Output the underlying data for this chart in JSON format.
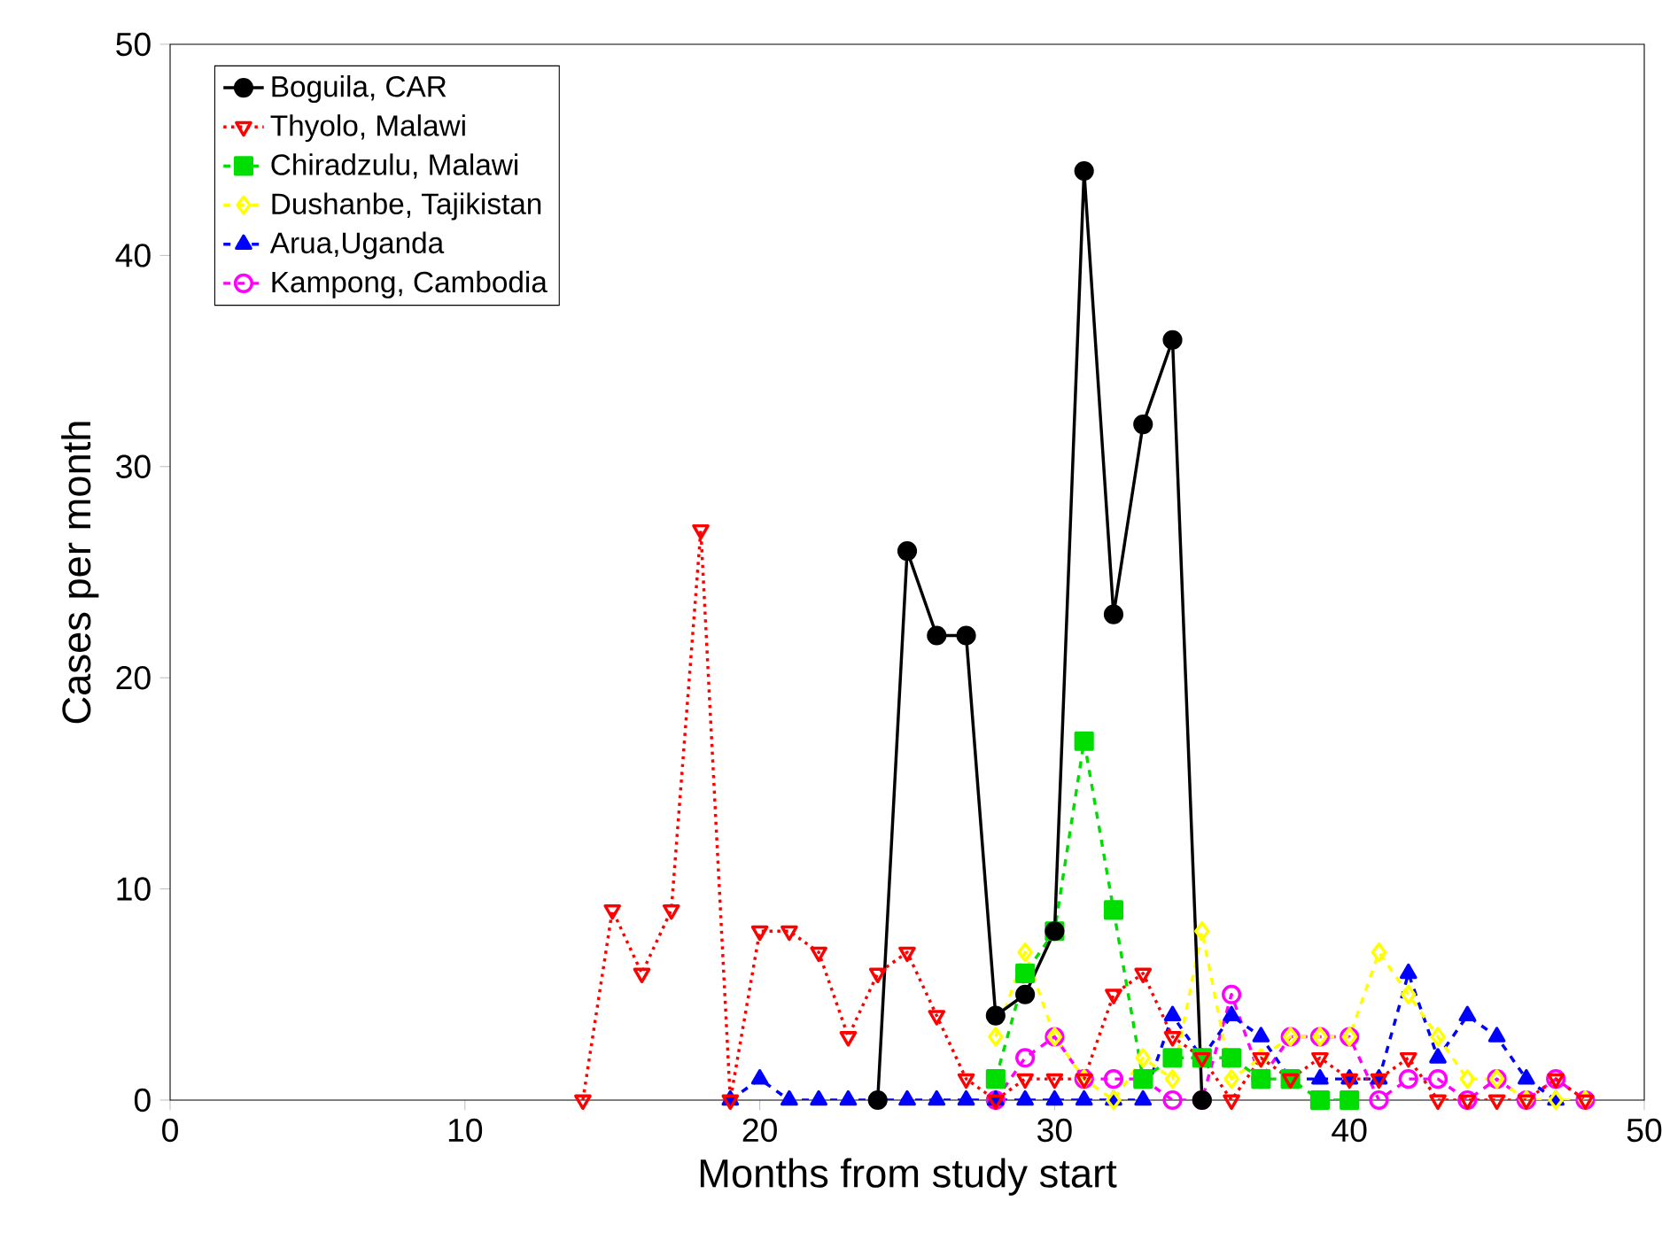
{
  "chart_data": {
    "type": "line",
    "xlabel": "Months from study start",
    "ylabel": "Cases per month",
    "xlim": [
      0,
      50
    ],
    "ylim": [
      0,
      50
    ],
    "xticks": [
      0,
      10,
      20,
      30,
      40,
      50
    ],
    "yticks": [
      0,
      10,
      20,
      30,
      40,
      50
    ],
    "grid": false,
    "legend": "top left",
    "series": [
      {
        "name": "Boguila, CAR",
        "color": "#000000",
        "marker": "circle",
        "line_style": "solid",
        "x": [
          24,
          25,
          26,
          27,
          28,
          29,
          30,
          31,
          32,
          33,
          34,
          35
        ],
        "values": [
          0,
          26,
          22,
          22,
          4,
          5,
          8,
          44,
          23,
          32,
          36,
          0
        ]
      },
      {
        "name": "Thyolo, Malawi",
        "color": "#ff0000",
        "marker": "triangle",
        "line_style": "dotted",
        "x": [
          14,
          15,
          16,
          17,
          18,
          19,
          20,
          21,
          22,
          23,
          24,
          25,
          26,
          27,
          28,
          29,
          30,
          31,
          32,
          33,
          34,
          35,
          36,
          37,
          38,
          39,
          40,
          41,
          42,
          43,
          44,
          45,
          46,
          47,
          48
        ],
        "values": [
          0,
          9,
          6,
          9,
          27,
          0,
          8,
          8,
          7,
          3,
          6,
          7,
          4,
          1,
          0,
          1,
          1,
          1,
          5,
          6,
          3,
          2,
          0,
          2,
          1,
          2,
          1,
          1,
          2,
          0,
          0,
          0,
          0,
          1,
          0
        ]
      },
      {
        "name": "Chiradzulu, Malawi",
        "color": "#00dd00",
        "marker": "square",
        "line_style": "dashed",
        "x": [
          28,
          29,
          30,
          31,
          32,
          33,
          34,
          35,
          36,
          37,
          38,
          39,
          40
        ],
        "values": [
          1,
          6,
          8,
          17,
          9,
          1,
          2,
          2,
          2,
          1,
          1,
          0,
          0
        ]
      },
      {
        "name": "Dushanbe, Tajikistan",
        "color": "#ffff00",
        "marker": "diamond",
        "line_style": "dashed",
        "x": [
          28,
          29,
          30,
          31,
          32,
          33,
          34,
          35,
          36,
          37,
          38,
          39,
          40,
          41,
          42,
          43,
          44,
          45,
          46,
          47,
          48
        ],
        "values": [
          3,
          7,
          3,
          1,
          0,
          2,
          1,
          8,
          1,
          2,
          3,
          3,
          3,
          7,
          5,
          3,
          1,
          1,
          0,
          0,
          0
        ]
      },
      {
        "name": "Arua,Uganda",
        "color": "#0000ff",
        "marker": "triangle",
        "line_style": "dashed",
        "x": [
          19,
          20,
          21,
          22,
          23,
          24,
          25,
          26,
          27,
          28,
          29,
          30,
          31,
          32,
          33,
          34,
          35,
          36,
          37,
          38,
          39,
          40,
          41,
          42,
          43,
          44,
          45,
          46,
          47
        ],
        "values": [
          0,
          1,
          0,
          0,
          0,
          0,
          0,
          0,
          0,
          0,
          0,
          0,
          0,
          0,
          0,
          4,
          2,
          4,
          3,
          1,
          1,
          1,
          1,
          6,
          2,
          4,
          3,
          1,
          0
        ]
      },
      {
        "name": "Kampong, Cambodia",
        "color": "#ff00ff",
        "marker": "circle",
        "line_style": "dashed",
        "x": [
          28,
          29,
          30,
          31,
          32,
          33,
          34,
          35,
          36,
          37,
          38,
          39,
          40,
          41,
          42,
          43,
          44,
          45,
          46,
          47,
          48
        ],
        "values": [
          0,
          2,
          3,
          1,
          1,
          1,
          0,
          0,
          5,
          1,
          3,
          3,
          3,
          0,
          1,
          1,
          0,
          1,
          0,
          1,
          0
        ]
      }
    ]
  }
}
